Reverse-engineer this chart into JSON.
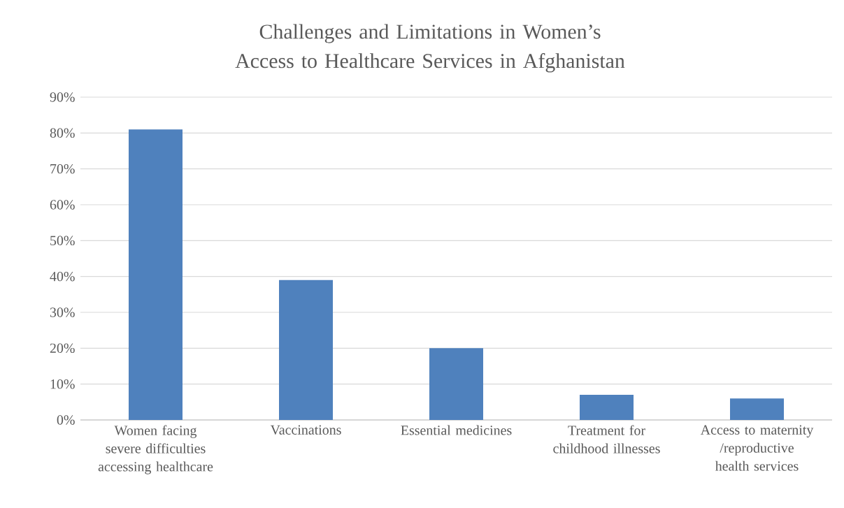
{
  "chart_data": {
    "type": "bar",
    "title": "Challenges and Limitations in Women’s Access to Healthcare Services in Afghanistan",
    "categories": [
      "Women facing severe difficulties accessing healthcare",
      "Vaccinations",
      "Essential medicines",
      "Treatment for childhood illnesses",
      "Access to maternity /reproductive health services"
    ],
    "values": [
      81,
      39,
      20,
      7,
      6
    ],
    "color": "#4f81bd",
    "ylim": [
      0,
      90
    ],
    "yticks": [
      {
        "value": 0,
        "label": "0%"
      },
      {
        "value": 10,
        "label": "10%"
      },
      {
        "value": 20,
        "label": "20%"
      },
      {
        "value": 30,
        "label": "30%"
      },
      {
        "value": 40,
        "label": "40%"
      },
      {
        "value": 50,
        "label": "50%"
      },
      {
        "value": 60,
        "label": "60%"
      },
      {
        "value": 70,
        "label": "70%"
      },
      {
        "value": 80,
        "label": "80%"
      },
      {
        "value": 90,
        "label": "90%"
      }
    ],
    "grid": "y",
    "legend": false
  }
}
